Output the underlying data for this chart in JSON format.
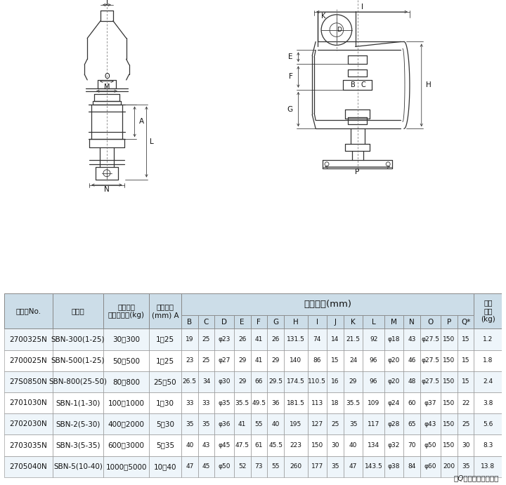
{
  "bg_color": "#ffffff",
  "header_bg": "#b8cfe0",
  "subheader_bg": "#ccdde8",
  "row_bg_alt": "#eef5fa",
  "row_bg_norm": "#ffffff",
  "border_color": "#888888",
  "rows": [
    [
      "2700325N",
      "SBN-300(1-25)",
      "30～300",
      "1～25",
      "19",
      "25",
      "φ23",
      "26",
      "41",
      "26",
      "131.5",
      "74",
      "14",
      "21.5",
      "92",
      "φ18",
      "43",
      "φ27.5",
      "150",
      "15",
      "1.2"
    ],
    [
      "2700025N",
      "SBN-500(1-25)",
      "50～500",
      "1～25",
      "23",
      "25",
      "φ27",
      "29",
      "41",
      "29",
      "140",
      "86",
      "15",
      "24",
      "96",
      "φ20",
      "46",
      "φ27.5",
      "150",
      "15",
      "1.8"
    ],
    [
      "27S0850N",
      "SBN-800(25-50)",
      "80～800",
      "25～50",
      "26.5",
      "34",
      "φ30",
      "29",
      "66",
      "29.5",
      "174.5",
      "110.5",
      "16",
      "29",
      "96",
      "φ20",
      "48",
      "φ27.5",
      "150",
      "15",
      "2.4"
    ],
    [
      "2701030N",
      "SBN-1(1-30)",
      "100～1000",
      "1～30",
      "33",
      "33",
      "φ35",
      "35.5",
      "49.5",
      "36",
      "181.5",
      "113",
      "18",
      "35.5",
      "109",
      "φ24",
      "60",
      "φ37",
      "150",
      "22",
      "3.8"
    ],
    [
      "2702030N",
      "SBN-2(5-30)",
      "400～2000",
      "5～30",
      "35",
      "35",
      "φ36",
      "41",
      "55",
      "40",
      "195",
      "127",
      "25",
      "35",
      "117",
      "φ28",
      "65",
      "φ43",
      "150",
      "25",
      "5.6"
    ],
    [
      "2703035N",
      "SBN-3(5-35)",
      "600～3000",
      "5～35",
      "40",
      "43",
      "φ45",
      "47.5",
      "61",
      "45.5",
      "223",
      "150",
      "30",
      "40",
      "134",
      "φ32",
      "70",
      "φ50",
      "150",
      "30",
      "8.3"
    ],
    [
      "2705040N",
      "SBN-5(10-40)",
      "1000～5000",
      "10～40",
      "47",
      "45",
      "φ50",
      "52",
      "73",
      "55",
      "260",
      "177",
      "35",
      "47",
      "143.5",
      "φ38",
      "84",
      "φ60",
      "200",
      "35",
      "13.8"
    ]
  ],
  "note": "＊Qはベアリング寸法",
  "col_defs": [
    [
      "コードNo.",
      0.09
    ],
    [
      "型　式",
      0.095
    ],
    [
      "使用荷重\n最小～最大(kg)",
      0.085
    ],
    [
      "有効板厚\n(mm) A",
      0.06
    ],
    [
      "B",
      0.031
    ],
    [
      "C",
      0.031
    ],
    [
      "D",
      0.036
    ],
    [
      "E",
      0.031
    ],
    [
      "F",
      0.031
    ],
    [
      "G",
      0.031
    ],
    [
      "H",
      0.044
    ],
    [
      "I",
      0.036
    ],
    [
      "J",
      0.031
    ],
    [
      "K",
      0.036
    ],
    [
      "L",
      0.04
    ],
    [
      "M",
      0.036
    ],
    [
      "N",
      0.031
    ],
    [
      "O",
      0.038
    ],
    [
      "P",
      0.031
    ],
    [
      "Q*",
      0.031
    ],
    [
      "製品\n質量\n(kg)",
      0.052
    ]
  ]
}
